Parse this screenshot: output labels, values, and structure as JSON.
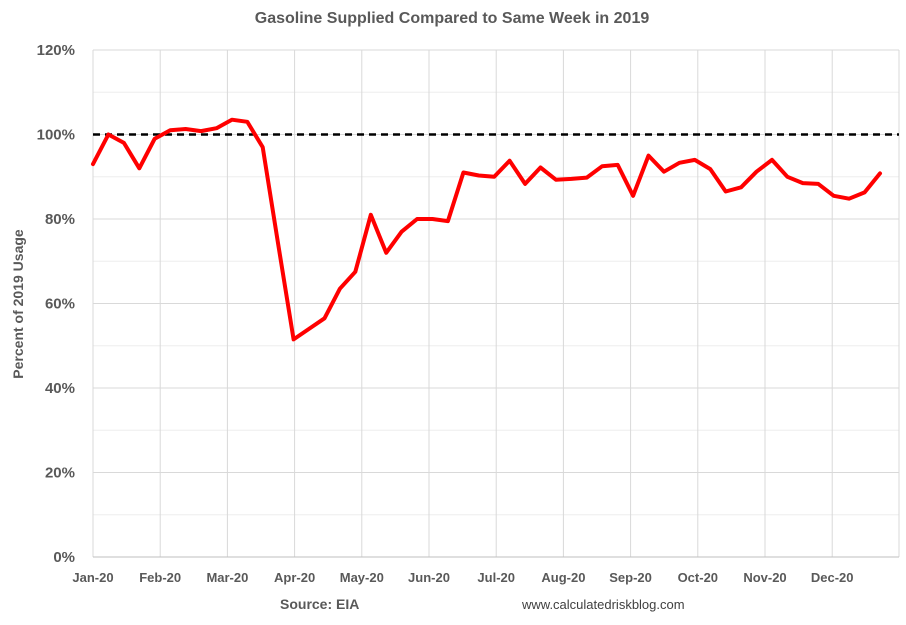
{
  "chart_data": {
    "type": "line",
    "title": "Gasoline Supplied Compared to Same Week in 2019",
    "ylabel": "Percent of 2019 Usage",
    "xlabel": "",
    "source": "Source: EIA",
    "website": "www.calculatedriskblog.com",
    "ylim": [
      0,
      120
    ],
    "yticks": [
      "0%",
      "20%",
      "40%",
      "60%",
      "80%",
      "100%",
      "120%"
    ],
    "ytick_values": [
      0,
      20,
      40,
      60,
      80,
      100,
      120
    ],
    "grid": true,
    "x_tick_labels": [
      "Jan-20",
      "Feb-20",
      "Mar-20",
      "Apr-20",
      "May-20",
      "Jun-20",
      "Jul-20",
      "Aug-20",
      "Sep-20",
      "Oct-20",
      "Nov-20",
      "Dec-20"
    ],
    "reference_line": {
      "value": 100,
      "style": "dashed",
      "color": "#000000"
    },
    "series": [
      {
        "color": "#ff0000",
        "values": [
          93,
          100,
          98,
          92,
          99,
          101,
          101.3,
          100.8,
          101.5,
          103.5,
          103,
          97,
          74,
          51.5,
          54,
          56.5,
          63.5,
          67.5,
          81,
          72,
          77,
          80,
          80,
          79.5,
          91,
          90.3,
          90,
          93.8,
          88.3,
          92.2,
          89.3,
          89.5,
          89.8,
          92.5,
          92.8,
          85.5,
          95,
          91.2,
          93.3,
          94,
          91.8,
          86.5,
          87.5,
          91.2,
          94,
          90,
          88.5,
          88.3,
          85.5,
          84.8,
          86.3,
          90.8
        ]
      }
    ]
  }
}
